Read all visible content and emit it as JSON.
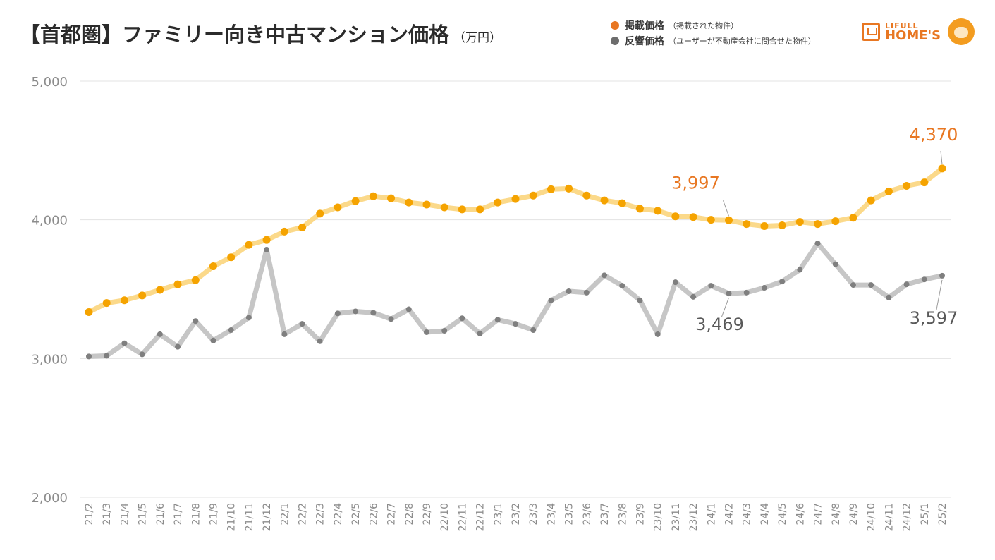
{
  "header": {
    "title": "【首都圏】ファミリー向き中古マンション価格",
    "unit": "（万円）"
  },
  "legend": {
    "listed_label": "掲載価格",
    "listed_note": "（掲載された物件）",
    "response_label": "反響価格",
    "response_note": "（ユーザーが不動産会社に問合せた物件）"
  },
  "logo": {
    "line1": "LIFULL",
    "line2": "HOME'S"
  },
  "colors": {
    "listed": "#f5a300",
    "listed_band": "#fbd98a",
    "listed_label": "#e87722",
    "response": "#7f7f7f",
    "response_band": "#c6c6c6",
    "response_label": "#595959",
    "grid": "#e3e3e3",
    "axis_text": "#8c8c8c"
  },
  "chart_data": {
    "type": "line",
    "title": "【首都圏】ファミリー向き中古マンション価格（万円）",
    "ylim": [
      2000,
      5000
    ],
    "yticks": [
      2000,
      3000,
      4000,
      5000
    ],
    "ytick_labels": [
      "2,000",
      "3,000",
      "4,000",
      "5,000"
    ],
    "grid": true,
    "legend_position": "top-right",
    "categories": [
      "21/2",
      "21/3",
      "21/4",
      "21/5",
      "21/6",
      "21/7",
      "21/8",
      "21/9",
      "21/10",
      "21/11",
      "21/12",
      "22/1",
      "22/2",
      "22/3",
      "22/4",
      "22/5",
      "22/6",
      "22/7",
      "22/8",
      "22/9",
      "22/10",
      "22/11",
      "22/12",
      "23/1",
      "23/2",
      "23/3",
      "23/4",
      "23/5",
      "23/6",
      "23/7",
      "23/8",
      "23/9",
      "23/10",
      "23/11",
      "23/12",
      "24/1",
      "24/2",
      "24/3",
      "24/4",
      "24/5",
      "24/6",
      "24/7",
      "24/8",
      "24/9",
      "24/10",
      "24/11",
      "24/12",
      "25/1",
      "25/2"
    ],
    "series": [
      {
        "name": "掲載価格",
        "values": [
          3335,
          3400,
          3420,
          3455,
          3495,
          3535,
          3565,
          3665,
          3730,
          3820,
          3855,
          3915,
          3945,
          4045,
          4090,
          4135,
          4170,
          4155,
          4125,
          4110,
          4090,
          4075,
          4075,
          4125,
          4150,
          4175,
          4220,
          4225,
          4175,
          4140,
          4120,
          4080,
          4065,
          4025,
          4020,
          4000,
          3997,
          3970,
          3955,
          3960,
          3985,
          3970,
          3990,
          4015,
          4140,
          4205,
          4245,
          4270,
          4370
        ]
      },
      {
        "name": "反響価格",
        "values": [
          3015,
          3020,
          3110,
          3030,
          3175,
          3085,
          3270,
          3130,
          3205,
          3295,
          3785,
          3175,
          3250,
          3125,
          3325,
          3340,
          3330,
          3285,
          3355,
          3190,
          3200,
          3290,
          3180,
          3280,
          3250,
          3205,
          3420,
          3485,
          3475,
          3600,
          3525,
          3420,
          3175,
          3550,
          3445,
          3525,
          3469,
          3475,
          3510,
          3555,
          3640,
          3830,
          3680,
          3530,
          3530,
          3440,
          3535,
          3570,
          3597
        ]
      }
    ],
    "annotations": [
      {
        "series": "掲載価格",
        "category": "24/2",
        "label": "3,997"
      },
      {
        "series": "掲載価格",
        "category": "25/2",
        "label": "4,370"
      },
      {
        "series": "反響価格",
        "category": "24/2",
        "label": "3,469"
      },
      {
        "series": "反響価格",
        "category": "25/2",
        "label": "3,597"
      }
    ]
  }
}
